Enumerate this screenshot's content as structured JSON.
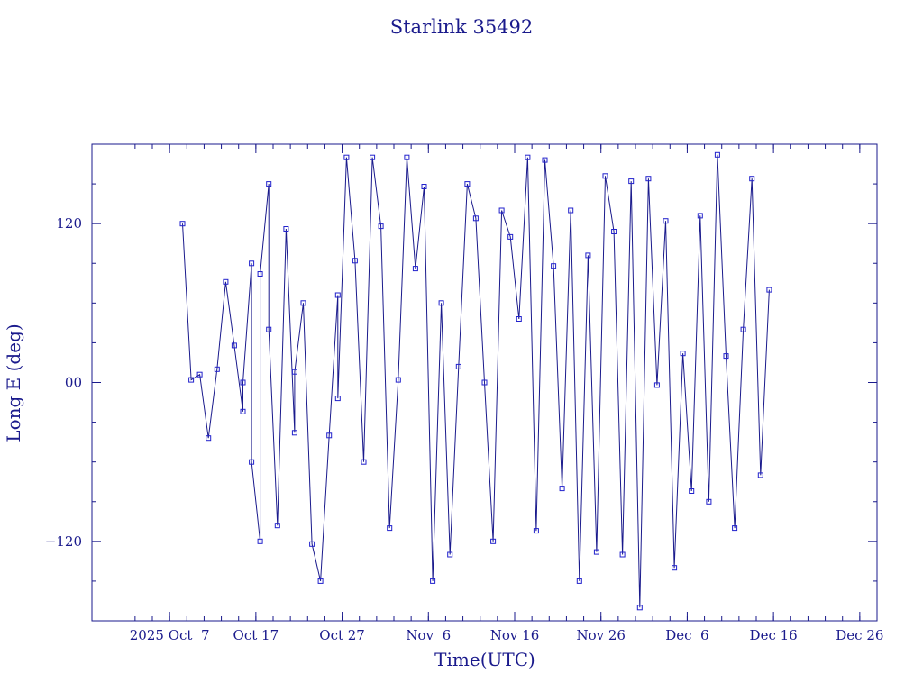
{
  "chart_data": {
    "type": "line",
    "title": "Starlink 35492",
    "xlabel": "Time(UTC)",
    "ylabel": "Long E (deg)",
    "x_tick_labels": [
      "2025 Oct  7",
      "Oct 17",
      "Oct 27",
      "Nov  6",
      "Nov 16",
      "Nov 26",
      "Dec  6",
      "Dec 16",
      "Dec 26"
    ],
    "x_tick_dates": [
      "2025-10-07",
      "2025-10-17",
      "2025-10-27",
      "2025-11-06",
      "2025-11-16",
      "2025-11-26",
      "2025-12-06",
      "2025-12-16",
      "2025-12-26"
    ],
    "xlim": [
      "2025-09-28",
      "2025-12-28"
    ],
    "y_tick_labels": [
      "120",
      "00",
      "−120"
    ],
    "y_tick_values": [
      120,
      0,
      -120
    ],
    "ylim": [
      -180,
      180
    ],
    "grid": false,
    "legend": "none",
    "colors": {
      "line": "#1a1a8c",
      "marker": "#2222cc",
      "axes": "#1a1a8c"
    },
    "series": [
      {
        "x": [
          "2025-10-08",
          "2025-10-09",
          "2025-10-10",
          "2025-10-11",
          "2025-10-12",
          "2025-10-13",
          "2025-10-14",
          "2025-10-15",
          "2025-10-15",
          "2025-10-16",
          "2025-10-16",
          "2025-10-17",
          "2025-10-17",
          "2025-10-18",
          "2025-10-18",
          "2025-10-19",
          "2025-10-20",
          "2025-10-21",
          "2025-10-21",
          "2025-10-22",
          "2025-10-23",
          "2025-10-24",
          "2025-10-25",
          "2025-10-26",
          "2025-10-26",
          "2025-10-27",
          "2025-10-28",
          "2025-10-29",
          "2025-10-30",
          "2025-10-31",
          "2025-11-01",
          "2025-11-02",
          "2025-11-03",
          "2025-11-04",
          "2025-11-05",
          "2025-11-06",
          "2025-11-07",
          "2025-11-08",
          "2025-11-09",
          "2025-11-10",
          "2025-11-11",
          "2025-11-12",
          "2025-11-13",
          "2025-11-14",
          "2025-11-15",
          "2025-11-16",
          "2025-11-17",
          "2025-11-18",
          "2025-11-19",
          "2025-11-20",
          "2025-11-21",
          "2025-11-22",
          "2025-11-23",
          "2025-11-24",
          "2025-11-25",
          "2025-11-26",
          "2025-11-27",
          "2025-11-28",
          "2025-11-29",
          "2025-11-30",
          "2025-12-01",
          "2025-12-02",
          "2025-12-03",
          "2025-12-04",
          "2025-12-05",
          "2025-12-06",
          "2025-12-07",
          "2025-12-08",
          "2025-12-09",
          "2025-12-10",
          "2025-12-11",
          "2025-12-12",
          "2025-12-13",
          "2025-12-14",
          "2025-12-15"
        ],
        "y": [
          120,
          2,
          6,
          -42,
          10,
          76,
          28,
          -22,
          0,
          90,
          -60,
          -120,
          82,
          150,
          40,
          -108,
          116,
          -38,
          8,
          60,
          -122,
          -150,
          -40,
          66,
          -12,
          170,
          92,
          -60,
          170,
          118,
          -110,
          2,
          170,
          86,
          148,
          -150,
          60,
          -130,
          12,
          150,
          124,
          0,
          -120,
          130,
          110,
          48,
          170,
          -112,
          168,
          88,
          -80,
          130,
          -150,
          96,
          -128,
          156,
          114,
          -130,
          152,
          -170,
          154,
          -2,
          122,
          -140,
          22,
          -82,
          126,
          -90,
          172,
          20,
          -110,
          40,
          154,
          -70,
          70
        ]
      }
    ]
  }
}
